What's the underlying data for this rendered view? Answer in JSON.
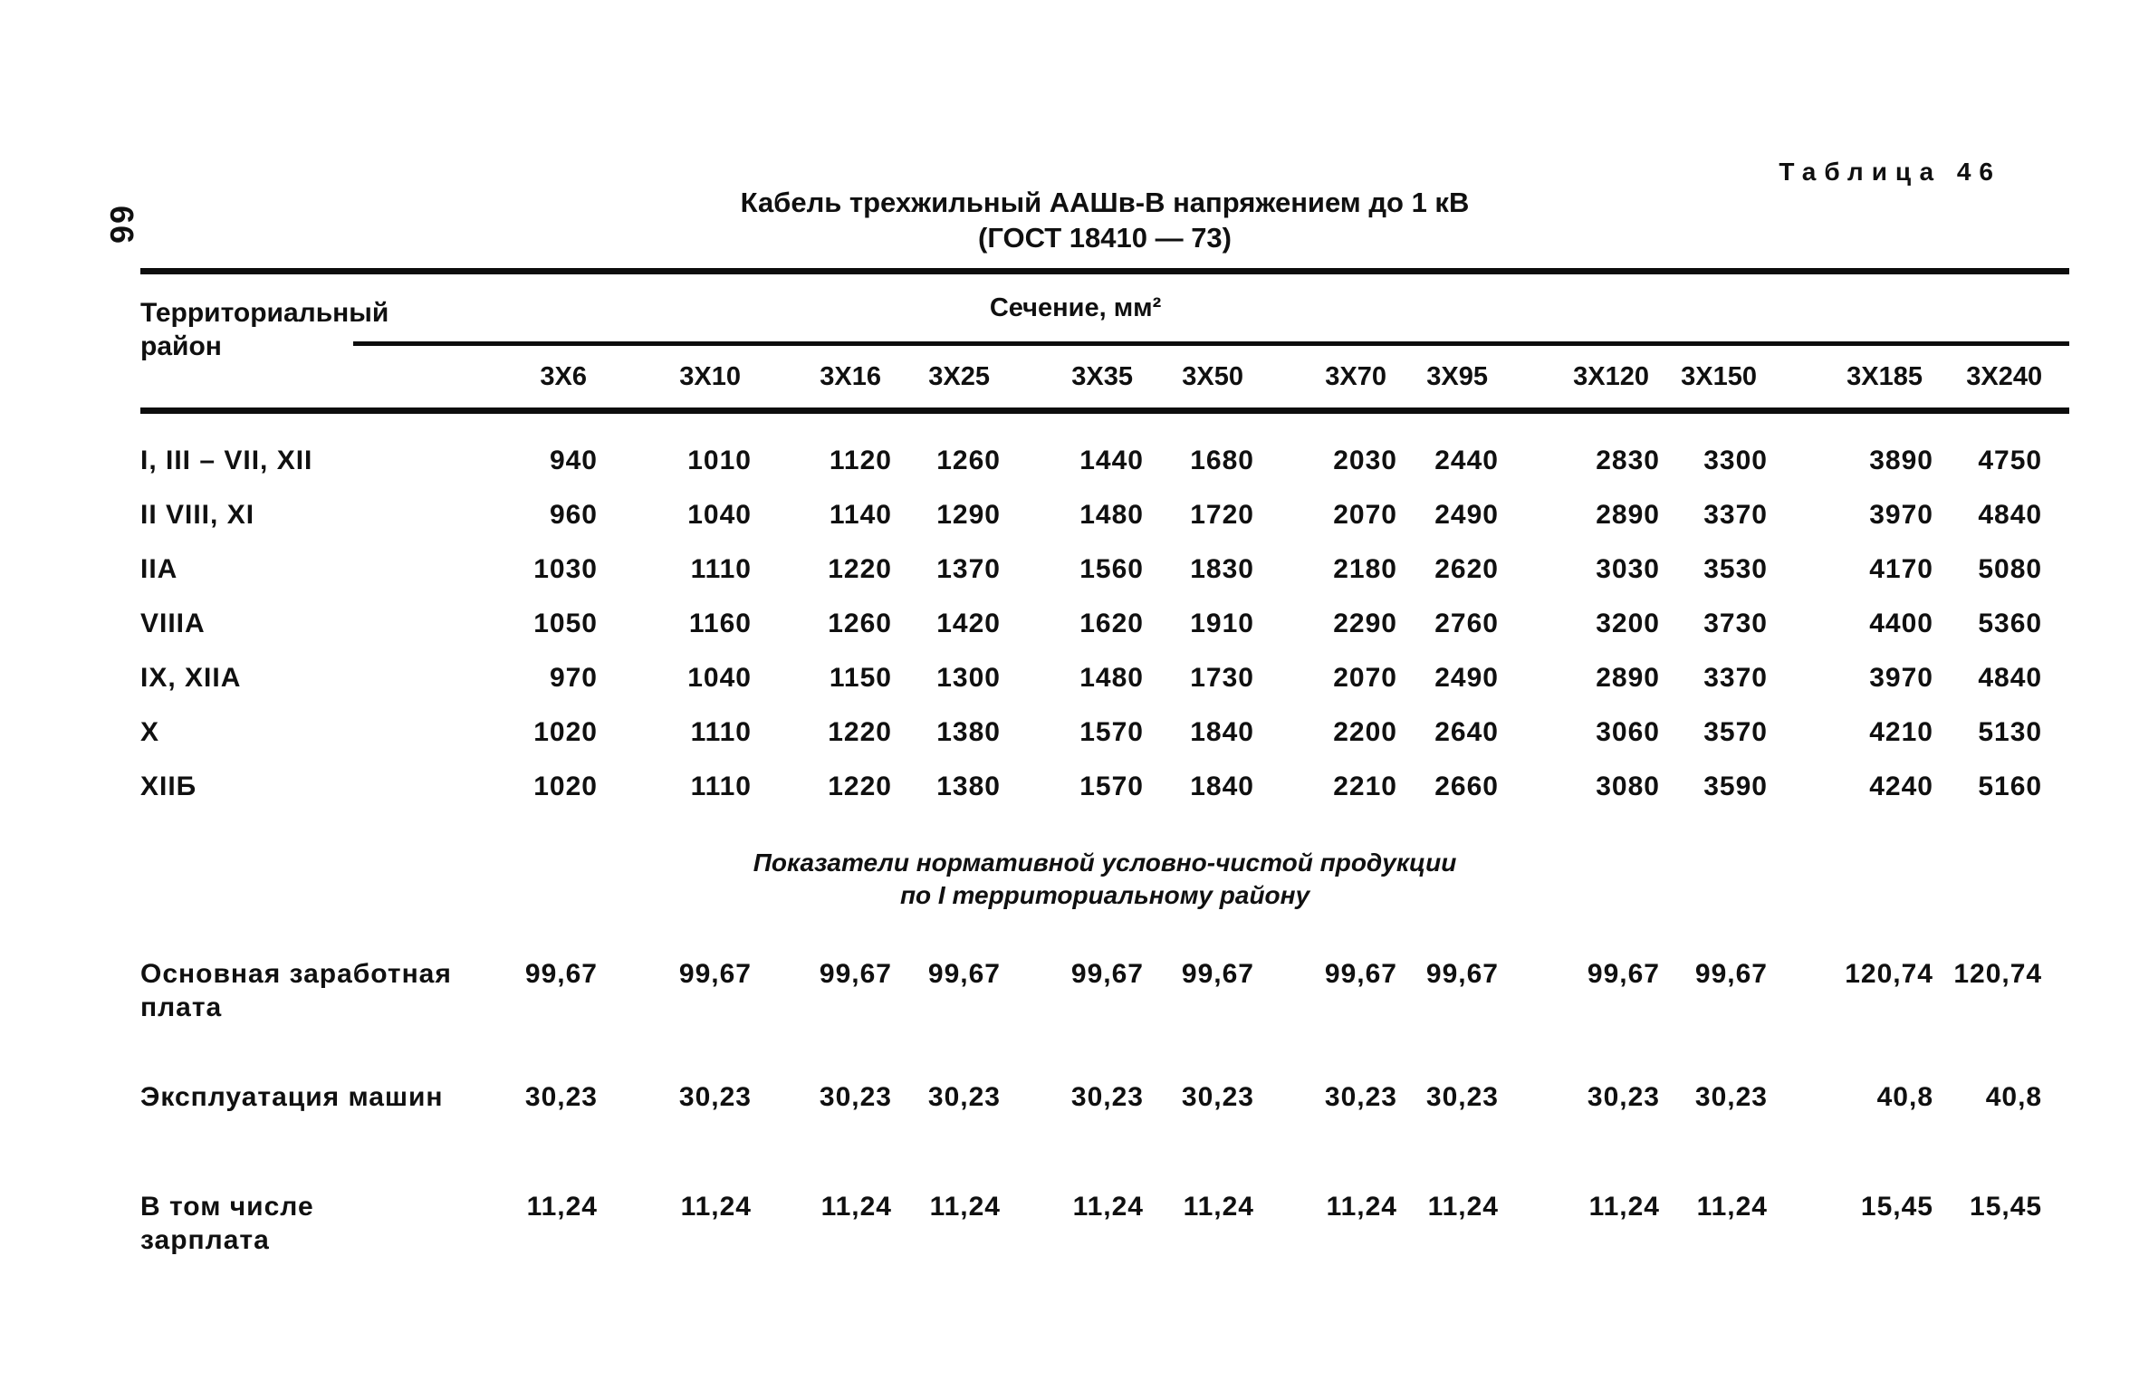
{
  "colors": {
    "paper": "#ffffff",
    "ink": "#101010"
  },
  "page": {
    "page_number": "66",
    "table_label": "Таблица 46",
    "title_line1": "Кабель трехжильный ААШв-В напряжением до 1 кВ",
    "title_line2": "(ГОСТ 18410 — 73)"
  },
  "table": {
    "row_header_line1": "Территориальный",
    "row_header_line2": "район",
    "col_group_header": "Сечение, мм²",
    "columns": [
      "3X6",
      "3X10",
      "3X16",
      "3X25",
      "3X35",
      "3X50",
      "3X70",
      "3X95",
      "3X120",
      "3X150",
      "3X185",
      "3X240"
    ],
    "rows": [
      {
        "label": "I, III – VII, XII",
        "values": [
          940,
          1010,
          1120,
          1260,
          1440,
          1680,
          2030,
          2440,
          2830,
          3300,
          3890,
          4750
        ]
      },
      {
        "label": "II  VIII, XI",
        "values": [
          960,
          1040,
          1140,
          1290,
          1480,
          1720,
          2070,
          2490,
          2890,
          3370,
          3970,
          4840
        ]
      },
      {
        "label": "IIA",
        "values": [
          1030,
          1110,
          1220,
          1370,
          1560,
          1830,
          2180,
          2620,
          3030,
          3530,
          4170,
          5080
        ]
      },
      {
        "label": "VIIIA",
        "values": [
          1050,
          1160,
          1260,
          1420,
          1620,
          1910,
          2290,
          2760,
          3200,
          3730,
          4400,
          5360
        ]
      },
      {
        "label": "IX, XIIA",
        "values": [
          970,
          1040,
          1150,
          1300,
          1480,
          1730,
          2070,
          2490,
          2890,
          3370,
          3970,
          4840
        ]
      },
      {
        "label": "X",
        "values": [
          1020,
          1110,
          1220,
          1380,
          1570,
          1840,
          2200,
          2640,
          3060,
          3570,
          4210,
          5130
        ]
      },
      {
        "label": "XIIБ",
        "values": [
          1020,
          1110,
          1220,
          1380,
          1570,
          1840,
          2210,
          2660,
          3080,
          3590,
          4240,
          5160
        ]
      }
    ],
    "section_note_line1": "Показатели нормативной условно-чистой продукции",
    "section_note_line2": "по  I  территориальному району",
    "indicator_rows": [
      {
        "label_line1": "Основная заработная",
        "label_line2": "плата",
        "values": [
          "99,67",
          "99,67",
          "99,67",
          "99,67",
          "99,67",
          "99,67",
          "99,67",
          "99,67",
          "99,67",
          "99,67",
          "120,74",
          "120,74"
        ]
      },
      {
        "label_line1": "Эксплуатация машин",
        "label_line2": "",
        "values": [
          "30,23",
          "30,23",
          "30,23",
          "30,23",
          "30,23",
          "30,23",
          "30,23",
          "30,23",
          "30,23",
          "30,23",
          "40,8",
          "40,8"
        ]
      },
      {
        "label_line1": "В том числе",
        "label_line2": "зарплата",
        "values": [
          "11,24",
          "11,24",
          "11,24",
          "11,24",
          "11,24",
          "11,24",
          "11,24",
          "11,24",
          "11,24",
          "11,24",
          "15,45",
          "15,45"
        ]
      }
    ]
  }
}
